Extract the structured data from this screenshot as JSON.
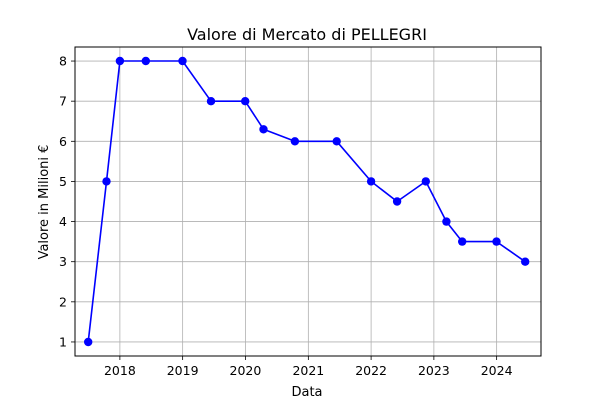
{
  "chart_data": {
    "type": "line",
    "title": "Valore di Mercato di PELLEGRI",
    "xlabel": "Data",
    "ylabel": "Valore in Milioni €",
    "x_axis_type": "date",
    "xlim": [
      "2017-04-15",
      "2024-09-15"
    ],
    "ylim": [
      0.65,
      8.35
    ],
    "x_ticks": [
      "2018",
      "2019",
      "2020",
      "2021",
      "2022",
      "2023",
      "2024"
    ],
    "y_ticks": [
      "1",
      "2",
      "3",
      "4",
      "5",
      "6",
      "7",
      "8"
    ],
    "grid": true,
    "series": [
      {
        "color": "#0000ff",
        "marker": "circle",
        "points": [
          {
            "x": "2017-07-01",
            "y": 1
          },
          {
            "x": "2017-10-15",
            "y": 5
          },
          {
            "x": "2018-01-01",
            "y": 8
          },
          {
            "x": "2018-06-01",
            "y": 8
          },
          {
            "x": "2018-12-31",
            "y": 8
          },
          {
            "x": "2019-06-15",
            "y": 7
          },
          {
            "x": "2019-12-31",
            "y": 7
          },
          {
            "x": "2020-04-15",
            "y": 6.3
          },
          {
            "x": "2020-10-15",
            "y": 6
          },
          {
            "x": "2021-06-15",
            "y": 6
          },
          {
            "x": "2022-01-01",
            "y": 5
          },
          {
            "x": "2022-06-01",
            "y": 4.5
          },
          {
            "x": "2022-11-15",
            "y": 5
          },
          {
            "x": "2023-03-15",
            "y": 4
          },
          {
            "x": "2023-06-15",
            "y": 3.5
          },
          {
            "x": "2023-12-31",
            "y": 3.5
          },
          {
            "x": "2024-06-15",
            "y": 3
          }
        ]
      }
    ]
  }
}
